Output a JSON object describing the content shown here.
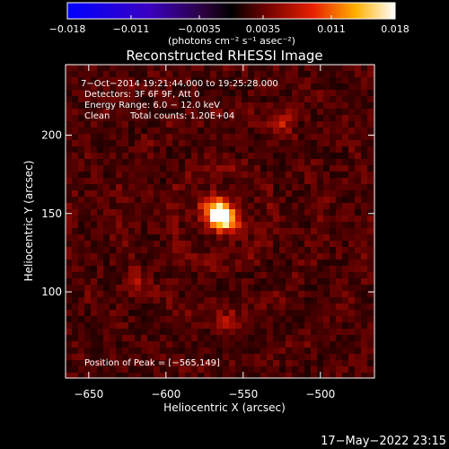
{
  "chart_data": {
    "type": "heatmap",
    "title": "Reconstructed RHESSI Image",
    "xlabel": "Heliocentric X (arcsec)",
    "ylabel": "Heliocentric Y (arcsec)",
    "xlim": [
      -665,
      -615
    ],
    "xlim_note": "",
    "x_range": [
      -665,
      -465
    ],
    "y_range": [
      45,
      245
    ],
    "x_ticks": [
      -650,
      -600,
      -550,
      -500
    ],
    "y_ticks": [
      100,
      150,
      200
    ],
    "colorbar": {
      "range": [
        -0.018,
        0.018
      ],
      "ticks": [
        -0.018,
        -0.011,
        -0.0035,
        0.0035,
        0.011,
        0.018
      ],
      "tick_labels": [
        "−0.018",
        "−0.011",
        "−0.0035",
        "0.0035",
        "0.011",
        "0.018"
      ],
      "units_label": "(photons cm⁻² s⁻¹ asec⁻²)",
      "colormap": "blue-purple-red-yellow-white"
    },
    "annotations": [
      "7−Oct−2014 19:21:44.000 to 19:25:28.000",
      "Detectors: 3F 6F 9F, Att 0",
      "Energy Range: 6.0 − 12.0 keV",
      "Clean",
      "Total counts: 1.20E+04"
    ],
    "peak_label": "Position of Peak = [−565,149]",
    "sources": [
      {
        "x": -565,
        "y": 149,
        "intensity": 1.0
      },
      {
        "x": -525,
        "y": 209,
        "intensity": 0.3
      },
      {
        "x": -620,
        "y": 106,
        "intensity": 0.28
      },
      {
        "x": -560,
        "y": 80,
        "intensity": 0.22
      }
    ]
  },
  "footer": {
    "timestamp": "17−May−2022 23:15"
  },
  "colors": {
    "background": "#000000",
    "foreground": "#ffffff"
  }
}
